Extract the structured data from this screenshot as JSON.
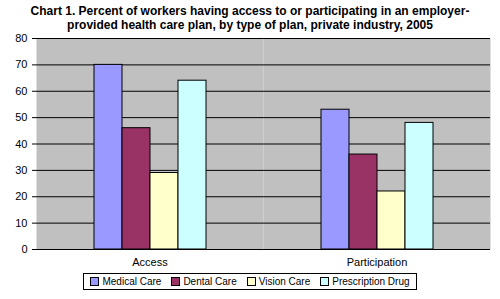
{
  "chart_data": {
    "type": "bar",
    "title": "Chart 1.  Percent of workers having access to or participating in an employer-provided health care plan, by type of plan, private industry, 2005",
    "categories": [
      "Access",
      "Participation"
    ],
    "series": [
      {
        "name": "Medical Care",
        "color": "#9999FF",
        "values": [
          70,
          53
        ]
      },
      {
        "name": "Dental Care",
        "color": "#993366",
        "values": [
          46,
          36
        ]
      },
      {
        "name": "Vision Care",
        "color": "#FFFFCC",
        "values": [
          29,
          22
        ]
      },
      {
        "name": "Prescription Drug",
        "color": "#CCFFFF",
        "values": [
          64,
          48
        ]
      }
    ],
    "ylim": [
      0,
      80
    ],
    "yticks": [
      0,
      10,
      20,
      30,
      40,
      50,
      60,
      70,
      80
    ],
    "grid": true,
    "legend": "bottom"
  }
}
